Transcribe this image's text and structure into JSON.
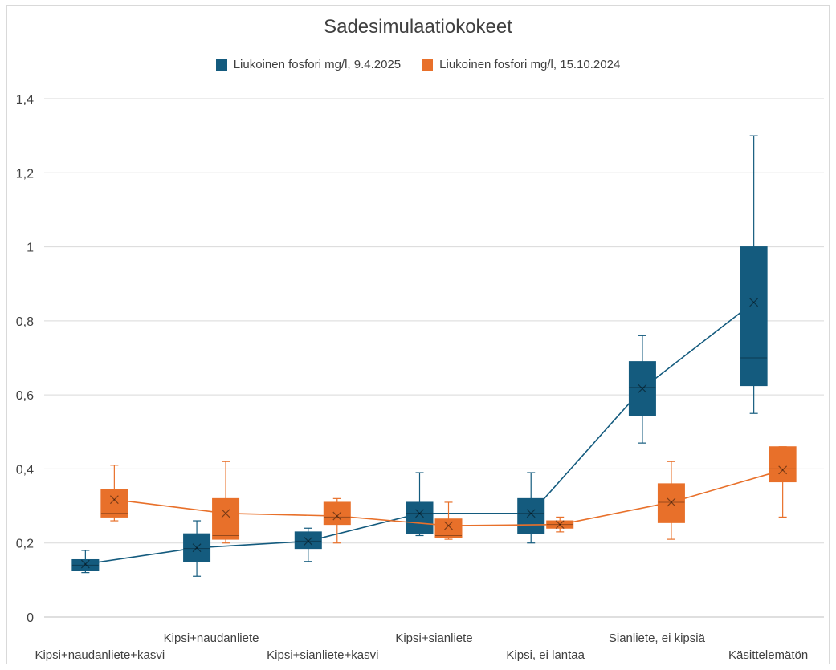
{
  "chart_data": {
    "type": "box",
    "title": "Sadesimulaatiokokeet",
    "categories": [
      "Kipsi+naudanliete+kasvi",
      "Kipsi+naudanliete",
      "Kipsi+sianliete+kasvi",
      "Kipsi+sianliete",
      "Kipsi, ei lantaa",
      "Sianliete, ei kipsiä",
      "Käsittelemätön"
    ],
    "y_ticks": [
      "0",
      "0,2",
      "0,4",
      "0,6",
      "0,8",
      "1",
      "1,2",
      "1,4"
    ],
    "ylim": [
      0,
      1.4
    ],
    "grid": true,
    "legend_position": "top",
    "series": [
      {
        "name": "Liukoinen fosfori mg/l, 9.4.2025",
        "color": "#145b7e",
        "boxes": [
          {
            "min": 0.12,
            "q1": 0.125,
            "median": 0.14,
            "q3": 0.155,
            "max": 0.18,
            "mean": 0.143
          },
          {
            "min": 0.11,
            "q1": 0.15,
            "median": 0.185,
            "q3": 0.225,
            "max": 0.26,
            "mean": 0.187
          },
          {
            "min": 0.15,
            "q1": 0.185,
            "median": 0.205,
            "q3": 0.23,
            "max": 0.24,
            "mean": 0.205
          },
          {
            "min": 0.22,
            "q1": 0.225,
            "median": 0.28,
            "q3": 0.31,
            "max": 0.39,
            "mean": 0.28
          },
          {
            "min": 0.2,
            "q1": 0.225,
            "median": 0.28,
            "q3": 0.32,
            "max": 0.39,
            "mean": 0.28
          },
          {
            "min": 0.47,
            "q1": 0.545,
            "median": 0.62,
            "q3": 0.69,
            "max": 0.76,
            "mean": 0.617
          },
          {
            "min": 0.55,
            "q1": 0.625,
            "median": 0.7,
            "q3": 1.0,
            "max": 1.3,
            "mean": 0.85
          }
        ]
      },
      {
        "name": "Liukoinen fosfori mg/l, 15.10.2024",
        "color": "#e8702a",
        "boxes": [
          {
            "min": 0.26,
            "q1": 0.27,
            "median": 0.28,
            "q3": 0.345,
            "max": 0.41,
            "mean": 0.317
          },
          {
            "min": 0.2,
            "q1": 0.21,
            "median": 0.22,
            "q3": 0.32,
            "max": 0.42,
            "mean": 0.28
          },
          {
            "min": 0.2,
            "q1": 0.25,
            "median": 0.27,
            "q3": 0.31,
            "max": 0.32,
            "mean": 0.273
          },
          {
            "min": 0.21,
            "q1": 0.215,
            "median": 0.22,
            "q3": 0.265,
            "max": 0.31,
            "mean": 0.247
          },
          {
            "min": 0.23,
            "q1": 0.24,
            "median": 0.25,
            "q3": 0.26,
            "max": 0.27,
            "mean": 0.25
          },
          {
            "min": 0.21,
            "q1": 0.255,
            "median": 0.31,
            "q3": 0.36,
            "max": 0.42,
            "mean": 0.31
          },
          {
            "min": 0.27,
            "q1": 0.365,
            "median": 0.4,
            "q3": 0.46,
            "max": 0.46,
            "mean": 0.397
          }
        ]
      }
    ]
  }
}
